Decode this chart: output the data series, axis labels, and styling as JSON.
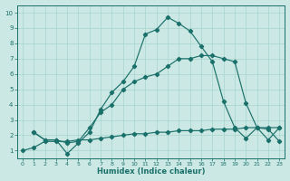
{
  "bg_color": "#cce8e4",
  "grid_color": "#a8d4cf",
  "line_color": "#1a706a",
  "xlabel": "Humidex (Indice chaleur)",
  "xlim": [
    -0.5,
    23.5
  ],
  "ylim": [
    0.5,
    10.5
  ],
  "xticks": [
    0,
    1,
    2,
    3,
    4,
    5,
    6,
    7,
    8,
    9,
    10,
    11,
    12,
    13,
    14,
    15,
    16,
    17,
    18,
    19,
    20,
    21,
    22,
    23
  ],
  "yticks": [
    1,
    2,
    3,
    4,
    5,
    6,
    7,
    8,
    9,
    10
  ],
  "line1_x": [
    0,
    1,
    2,
    3,
    4,
    5,
    6,
    7,
    8,
    9,
    10,
    11,
    12,
    13,
    14,
    15,
    16,
    17,
    18,
    19,
    20,
    21,
    22,
    23
  ],
  "line1_y": [
    1.0,
    1.2,
    1.6,
    1.6,
    1.6,
    1.7,
    1.7,
    1.8,
    1.9,
    2.0,
    2.1,
    2.1,
    2.2,
    2.2,
    2.3,
    2.3,
    2.3,
    2.4,
    2.4,
    2.4,
    2.5,
    2.5,
    2.5,
    2.5
  ],
  "line2_x": [
    1,
    2,
    3,
    4,
    5,
    6,
    7,
    8,
    9,
    10,
    11,
    12,
    13,
    14,
    15,
    16,
    17,
    18,
    19,
    20,
    21,
    22,
    23
  ],
  "line2_y": [
    2.2,
    1.7,
    1.7,
    0.8,
    1.5,
    2.2,
    3.7,
    4.8,
    5.5,
    6.5,
    8.6,
    8.9,
    9.7,
    9.3,
    8.8,
    7.8,
    6.8,
    4.2,
    2.5,
    1.8,
    2.5,
    2.4,
    1.6
  ],
  "line3_x": [
    1,
    2,
    3,
    4,
    5,
    6,
    7,
    8,
    9,
    10,
    11,
    12,
    13,
    14,
    15,
    16,
    17,
    18,
    19,
    20,
    21,
    22,
    23
  ],
  "line3_y": [
    2.2,
    1.7,
    1.7,
    1.5,
    1.6,
    2.5,
    3.5,
    4.0,
    5.0,
    5.5,
    5.8,
    6.0,
    6.5,
    7.0,
    7.0,
    7.2,
    7.2,
    7.0,
    6.8,
    4.1,
    2.5,
    1.7,
    2.5
  ]
}
